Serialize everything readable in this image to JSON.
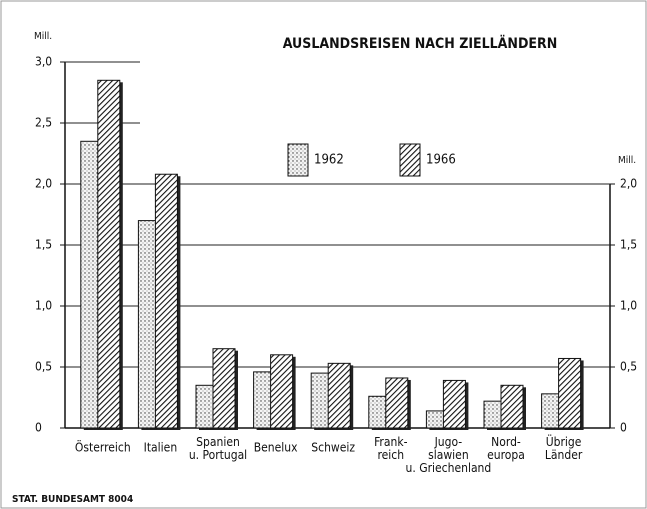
{
  "chart_data": {
    "type": "bar",
    "title": "AUSLANDSREISEN NACH ZIELLÄNDERN",
    "y_label": "Mill.",
    "y2_label": "Mill.",
    "source": "STAT. BUNDESAMT 8004",
    "categories": [
      "Österreich",
      "Italien",
      "Spanien\nu. Portugal",
      "Benelux",
      "Schweiz",
      "Frank-\nreich",
      "Jugo-\nslawien\nu. Griechenland",
      "Nord-\neuropa",
      "Übrige\nLänder"
    ],
    "series": [
      {
        "name": "1962",
        "color": "#ffffff",
        "pattern": "dots",
        "values": [
          2.35,
          1.7,
          0.35,
          0.46,
          0.45,
          0.26,
          0.14,
          0.22,
          0.28
        ]
      },
      {
        "name": "1966",
        "color": "#ffffff",
        "pattern": "hatch",
        "values": [
          2.85,
          2.08,
          0.65,
          0.6,
          0.53,
          0.41,
          0.39,
          0.35,
          0.57
        ]
      }
    ],
    "ylim": [
      0,
      3
    ],
    "yticks": [
      0,
      {
        "value": 0.5,
        "label": "0,5"
      },
      {
        "value": 1,
        "label": "1,0"
      },
      {
        "value": 1.5,
        "label": "1,5"
      },
      {
        "value": 2,
        "label": "2,0"
      },
      {
        "value": 2.5,
        "label": "2,5"
      },
      {
        "value": 3,
        "label": "3,0"
      }
    ],
    "y2lim": [
      0,
      3
    ],
    "y2ticks": [
      0,
      {
        "value": 0.5,
        "label": "0,5"
      },
      {
        "value": 1,
        "label": "1,0"
      },
      {
        "value": 1.5,
        "label": "1,5"
      },
      {
        "value": 2,
        "label": "2,0"
      }
    ],
    "grid": true,
    "legend": "top"
  }
}
